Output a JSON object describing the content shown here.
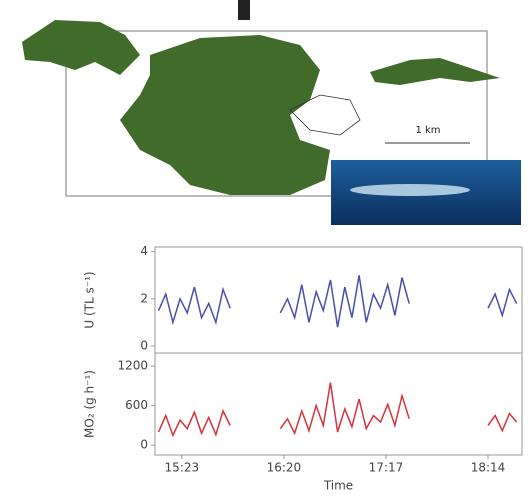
{
  "map": {
    "scale_label": "1 km"
  },
  "chart_data": [
    {
      "type": "line",
      "ylabel": "U (TL s⁻¹)",
      "x": [
        "15:10",
        "15:14",
        "15:18",
        "15:22",
        "15:26",
        "15:30",
        "15:34",
        "15:38",
        "15:42",
        "15:46",
        "15:50",
        "15:54",
        "15:58",
        "16:02",
        "16:06",
        "16:10",
        "16:14",
        "16:18",
        "16:22",
        "16:26",
        "16:30",
        "16:34",
        "16:38",
        "16:42",
        "16:46",
        "16:50",
        "16:54",
        "16:58",
        "17:02",
        "17:06",
        "17:10",
        "17:14",
        "17:18",
        "17:22",
        "17:26",
        "17:30",
        "17:34",
        "17:38",
        "17:42",
        "17:46",
        "17:50",
        "17:54",
        "17:58",
        "18:02",
        "18:06",
        "18:10",
        "18:14",
        "18:18",
        "18:22",
        "18:26",
        "18:30"
      ],
      "values": [
        1.5,
        2.2,
        1.0,
        2.0,
        1.4,
        2.5,
        1.2,
        1.8,
        1.0,
        2.4,
        1.6,
        null,
        null,
        null,
        null,
        null,
        null,
        1.4,
        2.0,
        1.2,
        2.6,
        1.0,
        2.3,
        1.5,
        2.8,
        0.8,
        2.5,
        1.2,
        3.0,
        1.0,
        2.2,
        1.6,
        2.6,
        1.3,
        2.9,
        1.8,
        null,
        null,
        null,
        null,
        null,
        null,
        null,
        null,
        null,
        null,
        1.6,
        2.2,
        1.3,
        2.4,
        1.8
      ],
      "color": "#4a4fa8",
      "xlim": [
        "15:08",
        "18:33"
      ],
      "ylim": [
        -0.3,
        4.2
      ],
      "yticks": [
        0,
        2,
        4
      ]
    },
    {
      "type": "line",
      "ylabel": "MO₂ (g h⁻¹)",
      "xlabel": "Time",
      "x": [
        "15:10",
        "15:14",
        "15:18",
        "15:22",
        "15:26",
        "15:30",
        "15:34",
        "15:38",
        "15:42",
        "15:46",
        "15:50",
        "15:54",
        "15:58",
        "16:02",
        "16:06",
        "16:10",
        "16:14",
        "16:18",
        "16:22",
        "16:26",
        "16:30",
        "16:34",
        "16:38",
        "16:42",
        "16:46",
        "16:50",
        "16:54",
        "16:58",
        "17:02",
        "17:06",
        "17:10",
        "17:14",
        "17:18",
        "17:22",
        "17:26",
        "17:30",
        "17:34",
        "17:38",
        "17:42",
        "17:46",
        "17:50",
        "17:54",
        "17:58",
        "18:02",
        "18:06",
        "18:10",
        "18:14",
        "18:18",
        "18:22",
        "18:26",
        "18:30"
      ],
      "values": [
        200,
        450,
        150,
        380,
        250,
        500,
        180,
        420,
        160,
        520,
        300,
        null,
        null,
        null,
        null,
        null,
        null,
        250,
        400,
        180,
        520,
        220,
        600,
        300,
        950,
        200,
        550,
        280,
        700,
        250,
        450,
        350,
        620,
        300,
        750,
        400,
        null,
        null,
        null,
        null,
        null,
        null,
        null,
        null,
        null,
        null,
        300,
        450,
        220,
        480,
        350
      ],
      "color": "#d8323c",
      "xlim": [
        "15:08",
        "18:33"
      ],
      "ylim": [
        -150,
        1400
      ],
      "yticks": [
        0,
        600,
        1200
      ],
      "xticks": [
        "15:23",
        "16:20",
        "17:17",
        "18:14"
      ]
    }
  ]
}
